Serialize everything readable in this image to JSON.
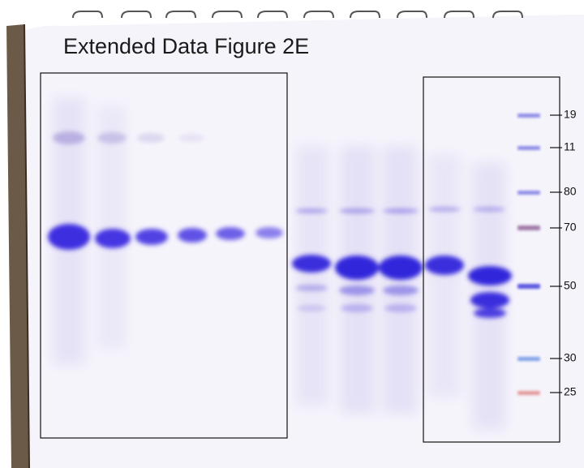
{
  "title": "Extended Data Figure 2E",
  "markers": [
    "19",
    "11",
    "80",
    "70",
    "50",
    "30",
    "25"
  ]
}
